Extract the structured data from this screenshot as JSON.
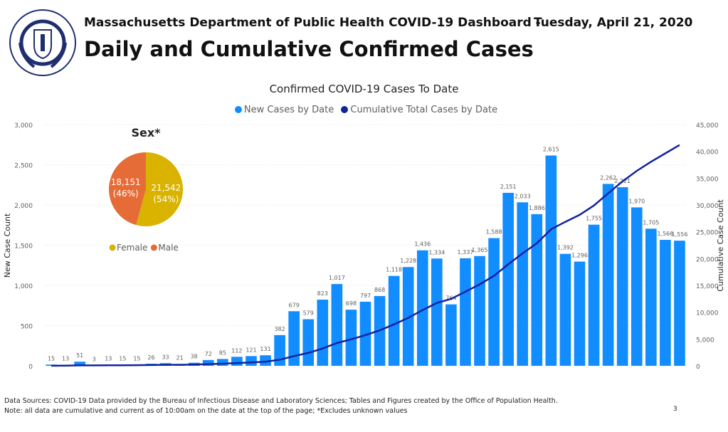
{
  "header": {
    "subtitle": "Massachusetts Department of Public Health COVID-19 Dashboard -",
    "date": "Tuesday, April 21, 2020",
    "title": "Daily and Cumulative Confirmed Cases",
    "logo_text": "COMMONWEALTH OF MASSACHUSETTS DEPARTMENT OF PUBLIC HEALTH"
  },
  "colors": {
    "bar": "#118DFF",
    "line": "#12239E",
    "female": "#D9B300",
    "male": "#E66C37"
  },
  "chart_data": {
    "type": "bar",
    "title": "Confirmed COVID-19 Cases To Date",
    "ylabel": "New Case Count",
    "y2label": "Cumulative Case Count",
    "ylim": [
      0,
      3000
    ],
    "y2lim": [
      0,
      45000
    ],
    "yticks": [
      "0",
      "500",
      "1,000",
      "1,500",
      "2,000",
      "2,500",
      "3,000"
    ],
    "y2ticks": [
      "0",
      "5,000",
      "10,000",
      "15,000",
      "20,000",
      "25,000",
      "30,000",
      "35,000",
      "40,000",
      "45,000"
    ],
    "grid": true,
    "legend_placement": "top-center",
    "series": [
      {
        "name": "New Cases by Date",
        "type": "bar",
        "values": [
          15,
          13,
          51,
          3,
          13,
          15,
          15,
          26,
          33,
          21,
          38,
          72,
          85,
          112,
          121,
          131,
          382,
          679,
          579,
          823,
          1017,
          698,
          797,
          868,
          1118,
          1228,
          1436,
          1334,
          764,
          1337,
          1365,
          1588,
          2151,
          2033,
          1886,
          2615,
          1392,
          1296,
          1755,
          2262,
          2221,
          1970,
          1705,
          1566,
          1556
        ]
      },
      {
        "name": "Cumulative Total Cases by Date",
        "type": "line",
        "values": [
          15,
          28,
          79,
          82,
          95,
          110,
          125,
          151,
          184,
          205,
          243,
          315,
          400,
          512,
          633,
          764,
          1146,
          1825,
          2404,
          3227,
          4244,
          4942,
          5739,
          6607,
          7725,
          8953,
          10389,
          11723,
          12487,
          13824,
          15189,
          16777,
          18928,
          20961,
          22847,
          25462,
          26854,
          28150,
          29905,
          32167,
          34388,
          36358,
          38063,
          39629,
          41185
        ]
      }
    ],
    "inset_pie": {
      "type": "pie",
      "title": "Sex*",
      "slices": [
        {
          "name": "Female",
          "value": 21542,
          "label": "21,542",
          "pct": "(54%)"
        },
        {
          "name": "Male",
          "value": 18151,
          "label": "18,151",
          "pct": "(46%)"
        }
      ]
    }
  },
  "footer": {
    "sources": "Data Sources: COVID-19 Data provided by the Bureau of Infectious Disease and Laboratory Sciences; Tables and Figures created by the Office of Population Health.",
    "note": "Note: all data are cumulative and current as of 10:00am on the date at the top of the page; *Excludes unknown values",
    "page": "3"
  }
}
